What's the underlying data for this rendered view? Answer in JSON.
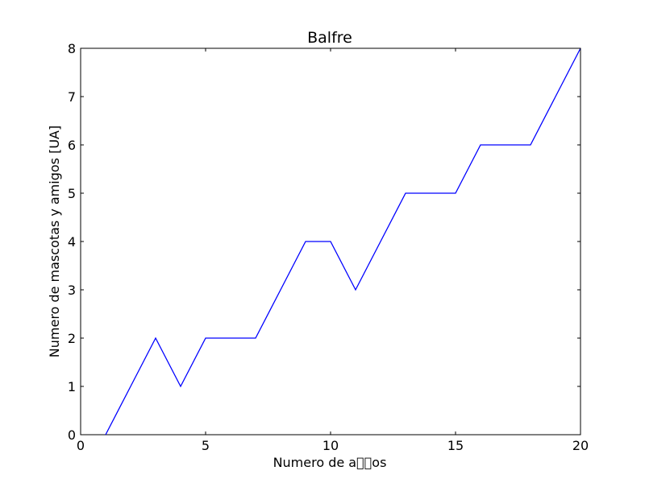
{
  "chart_data": {
    "type": "line",
    "title": "Balfre",
    "xlabel": "Numero de a\u0000\u0000os",
    "ylabel": "Numero de mascotas y amigos [UA]",
    "xlim": [
      0,
      20
    ],
    "ylim": [
      0,
      8
    ],
    "xticks": [
      0,
      5,
      10,
      15,
      20
    ],
    "yticks": [
      0,
      1,
      2,
      3,
      4,
      5,
      6,
      7,
      8
    ],
    "grid": false,
    "series": [
      {
        "color": "#0000ff",
        "x": [
          1,
          2,
          3,
          4,
          5,
          6,
          7,
          8,
          9,
          10,
          11,
          12,
          13,
          14,
          15,
          16,
          17,
          18,
          19,
          20
        ],
        "y": [
          0,
          1,
          2,
          1,
          2,
          2,
          2,
          3,
          4,
          4,
          3,
          4,
          5,
          5,
          5,
          6,
          6,
          6,
          7,
          8
        ]
      }
    ]
  }
}
